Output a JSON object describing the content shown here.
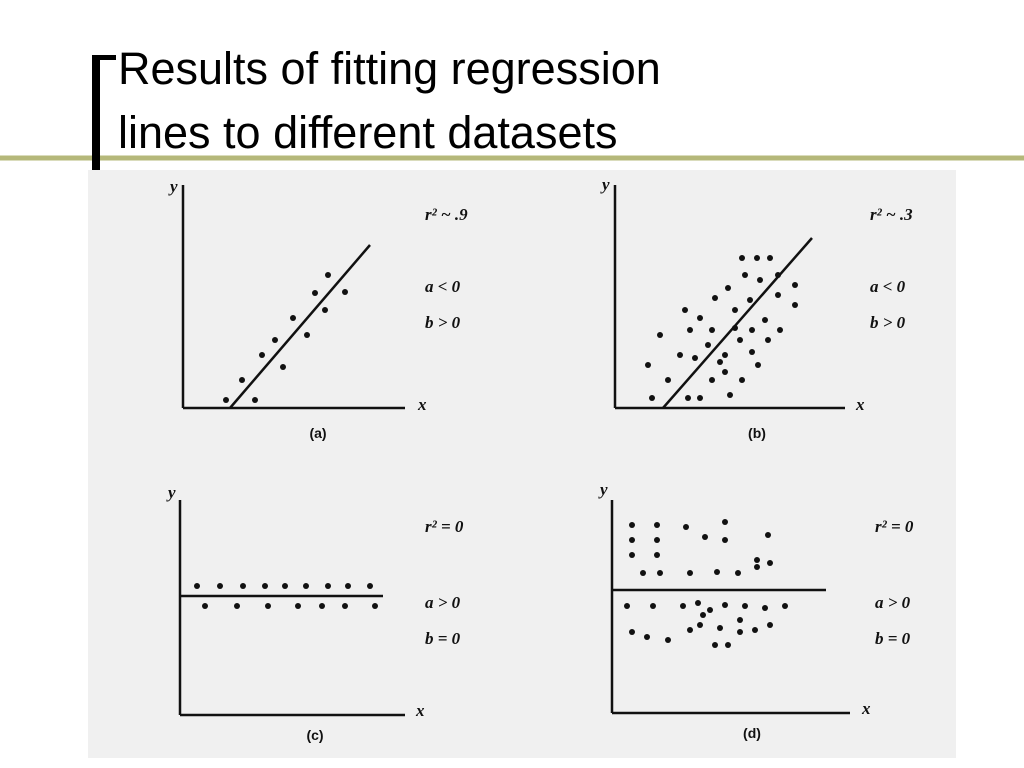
{
  "header": {
    "title_lines": [
      "Results of fitting regression",
      "lines to different datasets"
    ]
  },
  "panels": [
    {
      "label": "(a)",
      "y_axis": "y",
      "x_axis": "x",
      "annotations": [
        "r² ~ .9",
        "a < 0",
        "b > 0"
      ]
    },
    {
      "label": "(b)",
      "y_axis": "y",
      "x_axis": "x",
      "annotations": [
        "r² ~ .3",
        "a < 0",
        "b > 0"
      ]
    },
    {
      "label": "(c)",
      "y_axis": "y",
      "x_axis": "x",
      "annotations": [
        "r² = 0",
        "a > 0",
        "b = 0"
      ]
    },
    {
      "label": "(d)",
      "y_axis": "y",
      "x_axis": "x",
      "annotations": [
        "r² = 0",
        "a > 0",
        "b = 0"
      ]
    }
  ]
}
